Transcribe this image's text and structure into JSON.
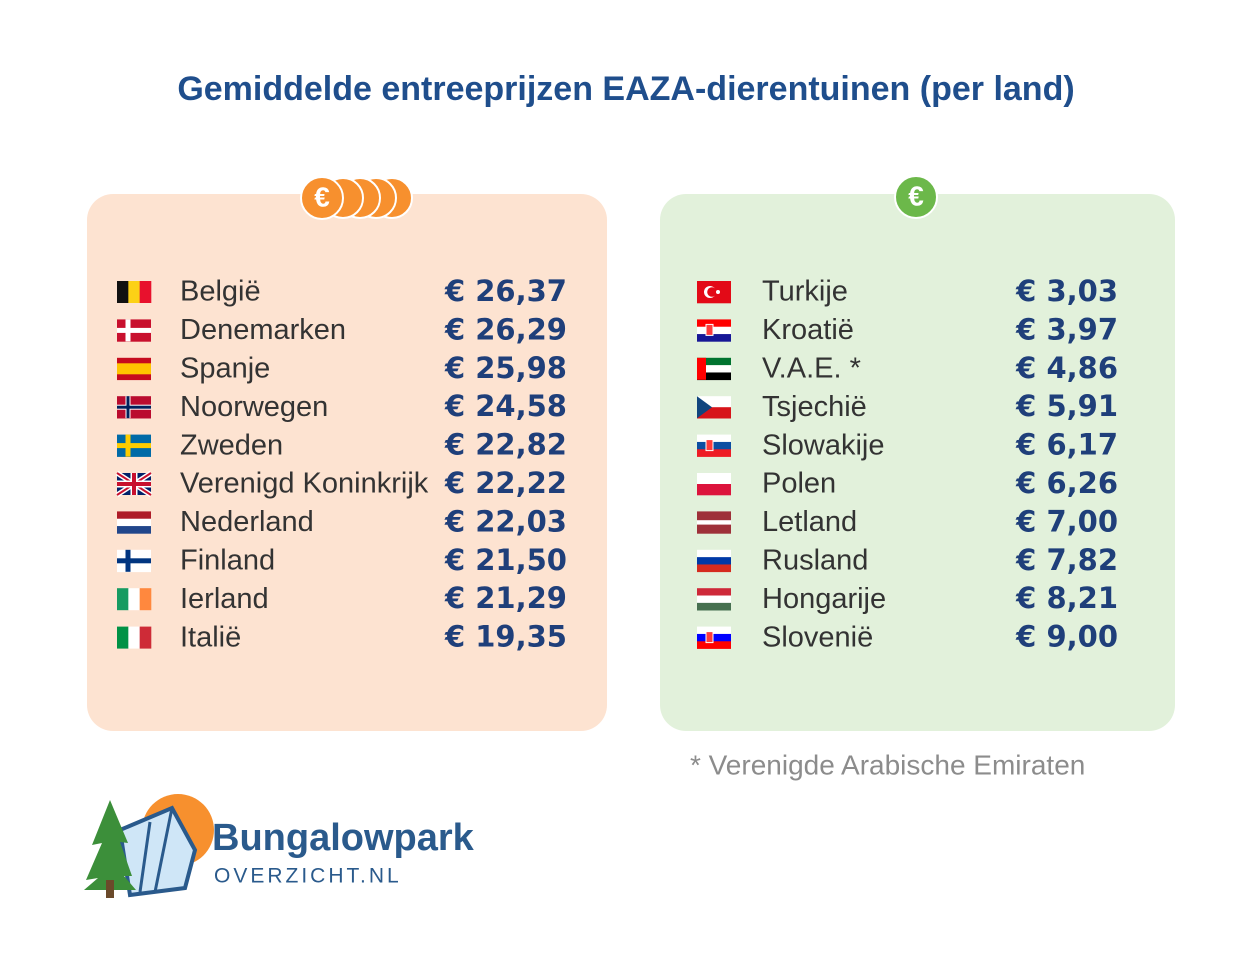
{
  "header": {
    "title": "Gemiddelde entreeprijzen EAZA-dierentuinen (per land)"
  },
  "left_panel": {
    "icon": "€",
    "rows": [
      {
        "country": "België",
        "price": "€ 26,37"
      },
      {
        "country": "Denemarken",
        "price": "€ 26,29"
      },
      {
        "country": "Spanje",
        "price": "€ 25,98"
      },
      {
        "country": "Noorwegen",
        "price": "€ 24,58"
      },
      {
        "country": "Zweden",
        "price": "€ 22,82"
      },
      {
        "country": "Verenigd Koninkrijk",
        "price": "€ 22,22"
      },
      {
        "country": "Nederland",
        "price": "€ 22,03"
      },
      {
        "country": "Finland",
        "price": "€ 21,50"
      },
      {
        "country": "Ierland",
        "price": "€ 21,29"
      },
      {
        "country": "Italië",
        "price": "€ 19,35"
      }
    ]
  },
  "right_panel": {
    "icon": "€",
    "rows": [
      {
        "country": "Turkije",
        "price": "€ 3,03"
      },
      {
        "country": "Kroatië",
        "price": "€ 3,97"
      },
      {
        "country": "V.A.E. *",
        "price": "€ 4,86"
      },
      {
        "country": "Tsjechië",
        "price": "€ 5,91"
      },
      {
        "country": "Slowakije",
        "price": "€ 6,17"
      },
      {
        "country": "Polen",
        "price": "€ 6,26"
      },
      {
        "country": "Letland",
        "price": "€ 7,00"
      },
      {
        "country": "Rusland",
        "price": "€ 7,82"
      },
      {
        "country": "Hongarije",
        "price": "€ 8,21"
      },
      {
        "country": "Slovenië",
        "price": "€ 9,00"
      }
    ]
  },
  "footnote": "* Verenigde Arabische Emiraten",
  "logo": {
    "name": "Bungalowpark",
    "domain": "OVERZICHT.NL"
  }
}
